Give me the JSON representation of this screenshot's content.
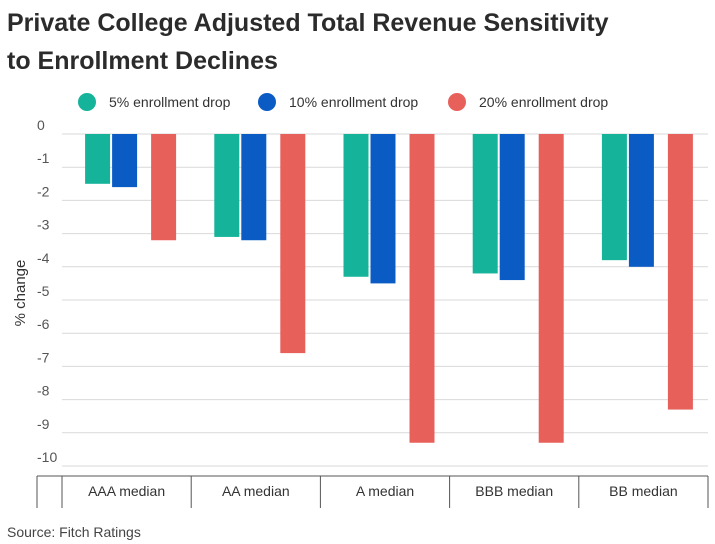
{
  "chart_data": {
    "type": "bar",
    "title_lines": [
      "Private College Adjusted Total Revenue Sensitivity",
      "to Enrollment Declines"
    ],
    "ylabel": "% change",
    "xlabel": "",
    "categories": [
      "AAA median",
      "AA median",
      "A median",
      "BBB median",
      "BB median"
    ],
    "series": [
      {
        "name": "5% enrollment drop",
        "color": "#14b39a",
        "values": [
          -1.5,
          -3.1,
          -4.3,
          -4.2,
          -3.8
        ]
      },
      {
        "name": "10% enrollment drop",
        "color": "#0a5cc4",
        "values": [
          -1.6,
          -3.2,
          -4.5,
          -4.4,
          -4.0
        ]
      },
      {
        "name": "20% enrollment drop",
        "color": "#e8605a",
        "values": [
          -3.2,
          -6.6,
          -9.3,
          -9.3,
          -8.3
        ]
      }
    ],
    "ylim": [
      -10,
      0
    ],
    "yticks": [
      "0",
      "-1",
      "-2",
      "-3",
      "-4",
      "-5",
      "-6",
      "-7",
      "-8",
      "-9",
      "-10"
    ],
    "grid": true,
    "legend": "top"
  },
  "source": "Source: Fitch Ratings"
}
